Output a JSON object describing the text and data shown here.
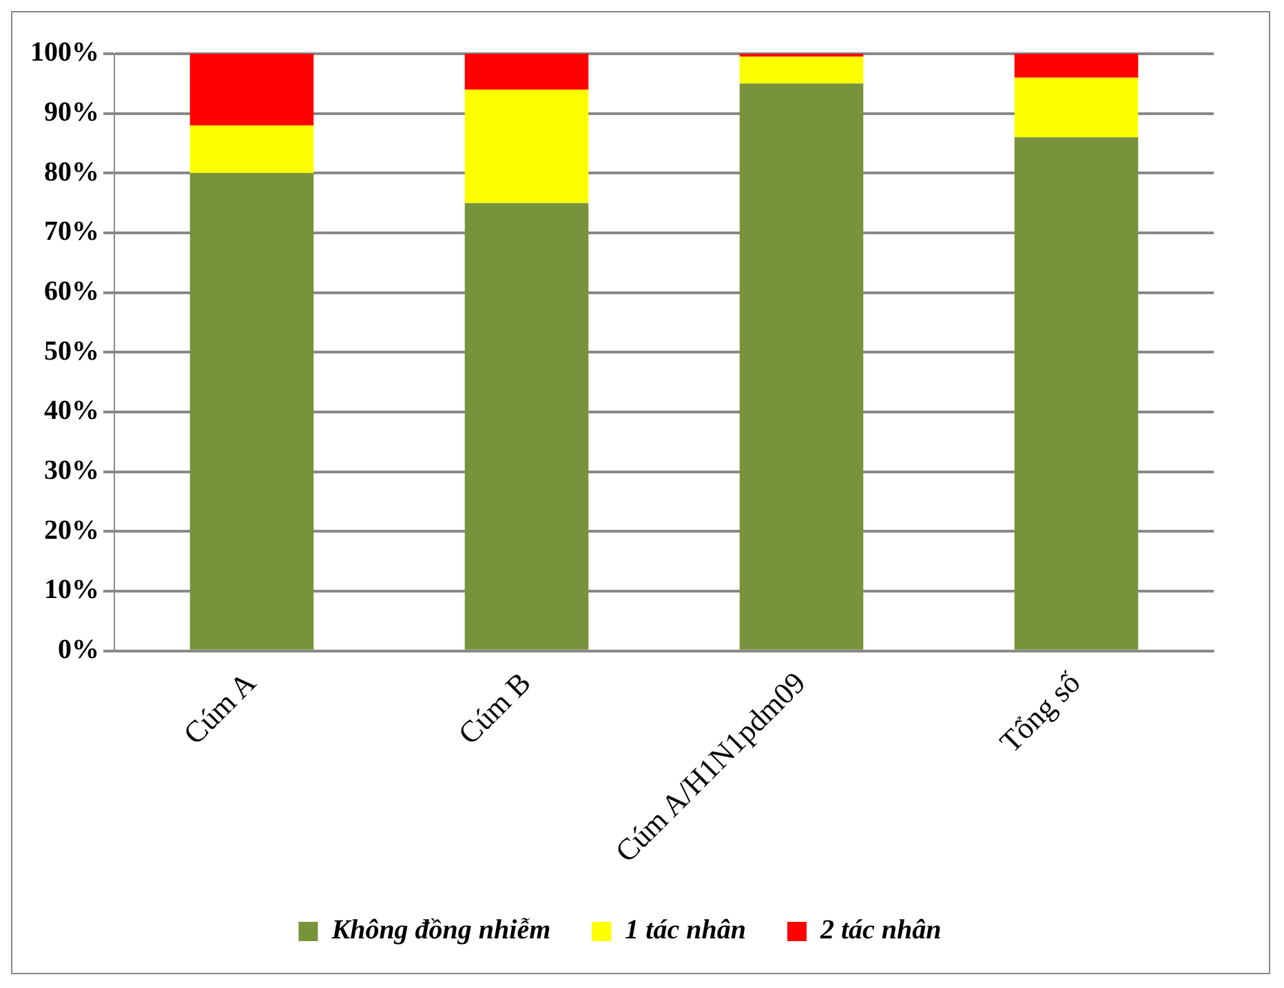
{
  "chart_data": {
    "type": "bar",
    "stacked": true,
    "categories": [
      "Cúm A",
      "Cúm B",
      "Cúm A/H1N1pdm09",
      "Tổng số"
    ],
    "series": [
      {
        "name": "Không đồng nhiễm",
        "color": "#77933c",
        "values": [
          80,
          75,
          95,
          86
        ]
      },
      {
        "name": "1 tác nhân",
        "color": "#ffff00",
        "values": [
          8,
          19,
          4.5,
          10
        ]
      },
      {
        "name": "2 tác nhân",
        "color": "#ff0000",
        "values": [
          12,
          6,
          0.5,
          4
        ]
      }
    ],
    "ylim": [
      0,
      100
    ],
    "yticks": [
      {
        "value": 0,
        "label": "0%"
      },
      {
        "value": 10,
        "label": "10%"
      },
      {
        "value": 20,
        "label": "20%"
      },
      {
        "value": 30,
        "label": "30%"
      },
      {
        "value": 40,
        "label": "40%"
      },
      {
        "value": 50,
        "label": "50%"
      },
      {
        "value": 60,
        "label": "60%"
      },
      {
        "value": 70,
        "label": "70%"
      },
      {
        "value": 80,
        "label": "80%"
      },
      {
        "value": 90,
        "label": "90%"
      },
      {
        "value": 100,
        "label": "100%"
      }
    ],
    "grid": "y",
    "legend": "bottom"
  }
}
